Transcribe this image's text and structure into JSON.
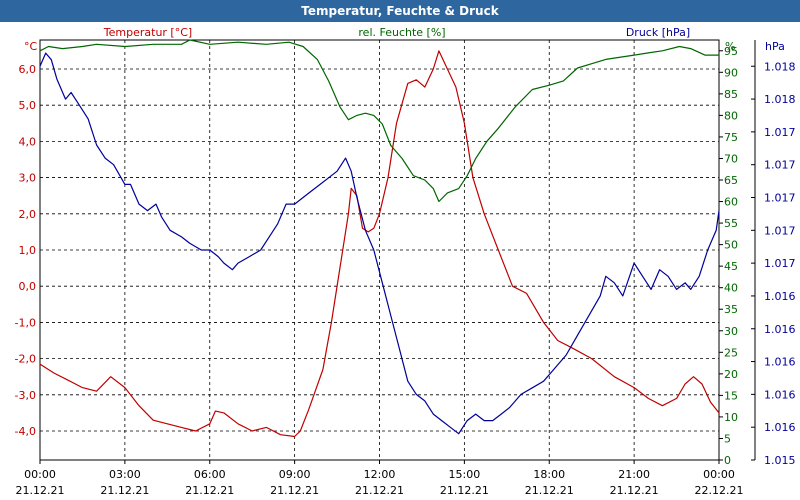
{
  "title": "Temperatur, Feuchte & Druck",
  "colors": {
    "temp": "#C00000",
    "hum": "#006600",
    "press": "#000099",
    "titlebar": "#2E66A0"
  },
  "chart_data": {
    "type": "line",
    "title": "Temperatur, Feuchte & Druck",
    "x_ticks": [
      {
        "time": "00:00",
        "date": "21.12.21"
      },
      {
        "time": "03:00",
        "date": "21.12.21"
      },
      {
        "time": "06:00",
        "date": "21.12.21"
      },
      {
        "time": "09:00",
        "date": "21.12.21"
      },
      {
        "time": "12:00",
        "date": "21.12.21"
      },
      {
        "time": "15:00",
        "date": "21.12.21"
      },
      {
        "time": "18:00",
        "date": "21.12.21"
      },
      {
        "time": "21:00",
        "date": "21.12.21"
      },
      {
        "time": "00:00",
        "date": "22.12.21"
      }
    ],
    "xlim": [
      0,
      24
    ],
    "axes": {
      "temp": {
        "unit_label": "°C",
        "title": "Temperatur [°C]",
        "ylim": [
          -4.8,
          6.8
        ],
        "ticks": [
          {
            "v": 6.0,
            "label": "6,0"
          },
          {
            "v": 5.0,
            "label": "5,0"
          },
          {
            "v": 4.0,
            "label": "4,0"
          },
          {
            "v": 3.0,
            "label": "3,0"
          },
          {
            "v": 2.0,
            "label": "2,0"
          },
          {
            "v": 1.0,
            "label": "1,0"
          },
          {
            "v": 0.0,
            "label": "0,0"
          },
          {
            "v": -1.0,
            "label": "-1,0"
          },
          {
            "v": -2.0,
            "label": "-2,0"
          },
          {
            "v": -3.0,
            "label": "-3,0"
          },
          {
            "v": -4.0,
            "label": "-4,0"
          }
        ]
      },
      "hum": {
        "unit_label": "%",
        "title": "rel. Feuchte [%]",
        "ylim": [
          0,
          97.5
        ],
        "ticks": [
          95,
          90,
          85,
          80,
          75,
          70,
          65,
          60,
          55,
          50,
          45,
          40,
          35,
          30,
          25,
          20,
          15,
          10,
          5,
          0
        ]
      },
      "press": {
        "unit_label": "hPa",
        "title": "Druck [hPa]",
        "ylim": [
          1015.0,
          1018.2
        ],
        "ticks": [
          {
            "v": 1018.0,
            "label": "1.018"
          },
          {
            "v": 1017.75,
            "label": "1.018"
          },
          {
            "v": 1017.5,
            "label": "1.017"
          },
          {
            "v": 1017.25,
            "label": "1.017"
          },
          {
            "v": 1017.0,
            "label": "1.017"
          },
          {
            "v": 1016.75,
            "label": "1.017"
          },
          {
            "v": 1016.5,
            "label": "1.017"
          },
          {
            "v": 1016.25,
            "label": "1.016"
          },
          {
            "v": 1016.0,
            "label": "1.016"
          },
          {
            "v": 1015.75,
            "label": "1.016"
          },
          {
            "v": 1015.5,
            "label": "1.016"
          },
          {
            "v": 1015.25,
            "label": "1.016"
          },
          {
            "v": 1015.0,
            "label": "1.015"
          }
        ]
      }
    },
    "series": [
      {
        "name": "Temperatur [°C]",
        "axis": "temp",
        "color": "#C00000",
        "points": [
          [
            0.0,
            -2.15
          ],
          [
            0.5,
            -2.4
          ],
          [
            1.0,
            -2.6
          ],
          [
            1.5,
            -2.8
          ],
          [
            2.0,
            -2.9
          ],
          [
            2.5,
            -2.5
          ],
          [
            3.0,
            -2.8
          ],
          [
            3.5,
            -3.3
          ],
          [
            4.0,
            -3.7
          ],
          [
            4.5,
            -3.8
          ],
          [
            5.0,
            -3.9
          ],
          [
            5.5,
            -4.0
          ],
          [
            6.0,
            -3.8
          ],
          [
            6.2,
            -3.45
          ],
          [
            6.5,
            -3.5
          ],
          [
            7.0,
            -3.8
          ],
          [
            7.5,
            -4.0
          ],
          [
            8.0,
            -3.9
          ],
          [
            8.5,
            -4.1
          ],
          [
            9.0,
            -4.15
          ],
          [
            9.2,
            -4.0
          ],
          [
            9.5,
            -3.4
          ],
          [
            10.0,
            -2.3
          ],
          [
            10.3,
            -1.0
          ],
          [
            10.6,
            0.5
          ],
          [
            10.9,
            2.0
          ],
          [
            11.0,
            2.7
          ],
          [
            11.2,
            2.5
          ],
          [
            11.4,
            1.6
          ],
          [
            11.6,
            1.5
          ],
          [
            11.8,
            1.6
          ],
          [
            12.0,
            2.0
          ],
          [
            12.3,
            3.0
          ],
          [
            12.6,
            4.5
          ],
          [
            13.0,
            5.6
          ],
          [
            13.3,
            5.7
          ],
          [
            13.6,
            5.5
          ],
          [
            13.9,
            6.0
          ],
          [
            14.1,
            6.5
          ],
          [
            14.4,
            6.0
          ],
          [
            14.7,
            5.5
          ],
          [
            15.0,
            4.5
          ],
          [
            15.3,
            3.0
          ],
          [
            15.7,
            2.0
          ],
          [
            16.2,
            1.0
          ],
          [
            16.7,
            0.0
          ],
          [
            17.2,
            -0.2
          ],
          [
            17.8,
            -1.0
          ],
          [
            18.3,
            -1.5
          ],
          [
            18.8,
            -1.7
          ],
          [
            19.5,
            -2.0
          ],
          [
            20.3,
            -2.5
          ],
          [
            21.0,
            -2.8
          ],
          [
            21.5,
            -3.1
          ],
          [
            22.0,
            -3.3
          ],
          [
            22.5,
            -3.1
          ],
          [
            22.8,
            -2.7
          ],
          [
            23.1,
            -2.5
          ],
          [
            23.4,
            -2.7
          ],
          [
            23.7,
            -3.2
          ],
          [
            24.0,
            -3.5
          ]
        ]
      },
      {
        "name": "rel. Feuchte [%]",
        "axis": "hum",
        "color": "#006600",
        "points": [
          [
            0.0,
            95
          ],
          [
            0.3,
            96
          ],
          [
            0.8,
            95.5
          ],
          [
            1.5,
            96
          ],
          [
            2.0,
            96.5
          ],
          [
            3.0,
            96
          ],
          [
            4.0,
            96.5
          ],
          [
            5.0,
            96.5
          ],
          [
            5.3,
            97.5
          ],
          [
            6.0,
            96.5
          ],
          [
            7.0,
            97
          ],
          [
            8.0,
            96.5
          ],
          [
            8.8,
            97
          ],
          [
            9.3,
            96
          ],
          [
            9.8,
            93
          ],
          [
            10.2,
            88
          ],
          [
            10.6,
            82
          ],
          [
            10.9,
            79
          ],
          [
            11.2,
            80
          ],
          [
            11.5,
            80.5
          ],
          [
            11.8,
            80
          ],
          [
            12.1,
            78
          ],
          [
            12.4,
            73
          ],
          [
            12.8,
            70
          ],
          [
            13.2,
            66
          ],
          [
            13.6,
            65
          ],
          [
            13.9,
            63
          ],
          [
            14.1,
            60
          ],
          [
            14.4,
            62
          ],
          [
            14.8,
            63
          ],
          [
            15.1,
            66
          ],
          [
            15.4,
            70
          ],
          [
            15.8,
            74
          ],
          [
            16.2,
            77
          ],
          [
            16.8,
            82
          ],
          [
            17.4,
            86
          ],
          [
            18.0,
            87
          ],
          [
            18.5,
            88
          ],
          [
            19.0,
            91
          ],
          [
            19.5,
            92
          ],
          [
            20.0,
            93
          ],
          [
            21.0,
            94
          ],
          [
            21.5,
            94.5
          ],
          [
            22.0,
            95
          ],
          [
            22.6,
            96
          ],
          [
            23.0,
            95.5
          ],
          [
            23.5,
            94
          ],
          [
            24.0,
            94
          ]
        ]
      },
      {
        "name": "Druck [hPa]",
        "axis": "press",
        "color": "#000099",
        "points": [
          [
            0.0,
            1018.0
          ],
          [
            0.2,
            1018.1
          ],
          [
            0.4,
            1018.05
          ],
          [
            0.6,
            1017.9
          ],
          [
            0.9,
            1017.75
          ],
          [
            1.1,
            1017.8
          ],
          [
            1.4,
            1017.7
          ],
          [
            1.7,
            1017.6
          ],
          [
            2.0,
            1017.4
          ],
          [
            2.3,
            1017.3
          ],
          [
            2.6,
            1017.25
          ],
          [
            3.0,
            1017.1
          ],
          [
            3.2,
            1017.1
          ],
          [
            3.5,
            1016.95
          ],
          [
            3.8,
            1016.9
          ],
          [
            4.1,
            1016.95
          ],
          [
            4.3,
            1016.85
          ],
          [
            4.6,
            1016.75
          ],
          [
            5.0,
            1016.7
          ],
          [
            5.3,
            1016.65
          ],
          [
            5.7,
            1016.6
          ],
          [
            6.0,
            1016.6
          ],
          [
            6.3,
            1016.55
          ],
          [
            6.5,
            1016.5
          ],
          [
            6.8,
            1016.45
          ],
          [
            7.0,
            1016.5
          ],
          [
            7.4,
            1016.55
          ],
          [
            7.8,
            1016.6
          ],
          [
            8.1,
            1016.7
          ],
          [
            8.4,
            1016.8
          ],
          [
            8.7,
            1016.95
          ],
          [
            9.0,
            1016.95
          ],
          [
            9.3,
            1017.0
          ],
          [
            9.6,
            1017.05
          ],
          [
            9.9,
            1017.1
          ],
          [
            10.2,
            1017.15
          ],
          [
            10.5,
            1017.2
          ],
          [
            10.8,
            1017.3
          ],
          [
            11.0,
            1017.2
          ],
          [
            11.2,
            1017.0
          ],
          [
            11.5,
            1016.75
          ],
          [
            11.8,
            1016.6
          ],
          [
            12.1,
            1016.35
          ],
          [
            12.4,
            1016.1
          ],
          [
            12.7,
            1015.85
          ],
          [
            13.0,
            1015.6
          ],
          [
            13.3,
            1015.5
          ],
          [
            13.6,
            1015.45
          ],
          [
            13.9,
            1015.35
          ],
          [
            14.2,
            1015.3
          ],
          [
            14.5,
            1015.25
          ],
          [
            14.8,
            1015.2
          ],
          [
            15.1,
            1015.3
          ],
          [
            15.4,
            1015.35
          ],
          [
            15.7,
            1015.3
          ],
          [
            16.0,
            1015.3
          ],
          [
            16.3,
            1015.35
          ],
          [
            16.6,
            1015.4
          ],
          [
            17.0,
            1015.5
          ],
          [
            17.4,
            1015.55
          ],
          [
            17.8,
            1015.6
          ],
          [
            18.2,
            1015.7
          ],
          [
            18.6,
            1015.8
          ],
          [
            19.0,
            1015.95
          ],
          [
            19.4,
            1016.1
          ],
          [
            19.8,
            1016.25
          ],
          [
            20.0,
            1016.4
          ],
          [
            20.3,
            1016.35
          ],
          [
            20.6,
            1016.25
          ],
          [
            21.0,
            1016.5
          ],
          [
            21.3,
            1016.4
          ],
          [
            21.6,
            1016.3
          ],
          [
            21.9,
            1016.45
          ],
          [
            22.2,
            1016.4
          ],
          [
            22.5,
            1016.3
          ],
          [
            22.8,
            1016.35
          ],
          [
            23.0,
            1016.3
          ],
          [
            23.3,
            1016.4
          ],
          [
            23.6,
            1016.6
          ],
          [
            23.9,
            1016.75
          ],
          [
            24.0,
            1016.9
          ]
        ]
      }
    ],
    "grid": true
  }
}
